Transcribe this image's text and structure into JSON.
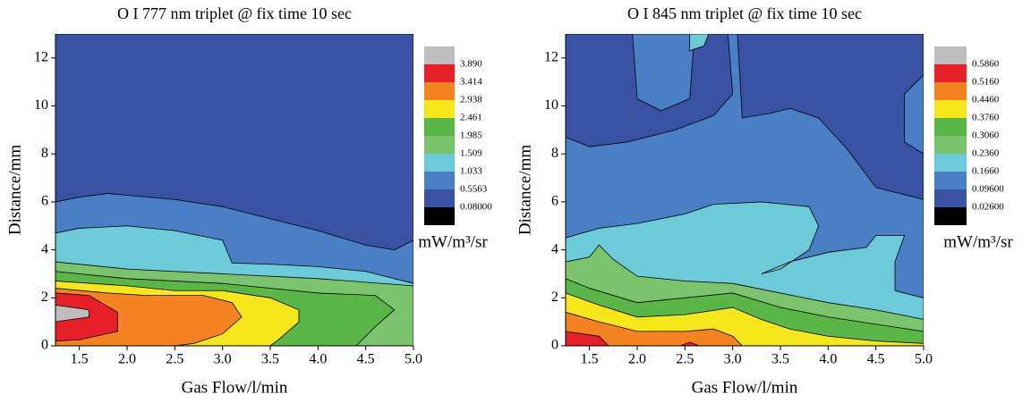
{
  "chart_data": [
    {
      "type": "contour",
      "title": "O I 777 nm triplet @ fix time 10 sec",
      "x_label": "Gas Flow/l/min",
      "y_label": "Distance/mm",
      "xlim": [
        1.25,
        5.0
      ],
      "xticks": [
        1.5,
        {
          "value": 2,
          "label": "2.0"
        },
        2.5,
        {
          "value": 3,
          "label": "3.0"
        },
        3.5,
        {
          "value": 4,
          "label": "4.0"
        },
        4.5,
        {
          "value": 5,
          "label": "5.0"
        }
      ],
      "ylim": [
        0,
        13
      ],
      "yticks": [
        0,
        2,
        4,
        6,
        8,
        10,
        12
      ],
      "colorbar": {
        "label": "mW/m³/sr",
        "levels": [
          {
            "value": 0.08,
            "label": "0.08000"
          },
          0.5563,
          1.033,
          1.509,
          1.985,
          2.461,
          2.938,
          3.414,
          {
            "value": 3.89,
            "label": "3.890"
          }
        ],
        "colors": [
          "#000000",
          "#3a52a3",
          "#4a7fc5",
          "#6dcbd9",
          "#7cc36e",
          "#5ab646",
          "#f5e71a",
          "#f58220",
          "#e8202a",
          "#bebebe"
        ]
      },
      "regions": [
        {
          "color": "#3a52a3",
          "x": [
            1.25,
            5,
            5,
            1.25
          ],
          "y": [
            13,
            13,
            0,
            0
          ]
        },
        {
          "color": "#4a7fc5",
          "x": [
            1.25,
            1.5,
            1.8,
            2.5,
            3.0,
            3.5,
            4.0,
            4.5,
            4.8,
            5,
            5,
            1.25
          ],
          "y": [
            6.0,
            6.2,
            6.35,
            6.1,
            5.8,
            5.3,
            4.8,
            4.2,
            4.0,
            4.4,
            0,
            0
          ]
        },
        {
          "color": "#6dcbd9",
          "x": [
            1.25,
            1.5,
            2.0,
            2.5,
            3.0,
            3.1,
            3.5,
            4.0,
            4.5,
            5,
            5,
            1.25
          ],
          "y": [
            4.7,
            4.9,
            5.0,
            4.8,
            4.4,
            3.45,
            3.4,
            3.3,
            3.1,
            2.6,
            0,
            0
          ]
        },
        {
          "color": "#7cc36e",
          "x": [
            1.25,
            2.0,
            3.0,
            4.0,
            5,
            5,
            1.25
          ],
          "y": [
            3.5,
            3.2,
            3.0,
            2.8,
            2.5,
            0,
            0
          ]
        },
        {
          "color": "#5ab646",
          "x": [
            1.25,
            2.0,
            3.0,
            4.0,
            4.6,
            4.8,
            4.6,
            4.4,
            1.25
          ],
          "y": [
            3.1,
            2.8,
            2.6,
            2.2,
            2.1,
            1.5,
            0.8,
            0,
            0
          ]
        },
        {
          "color": "#f5e71a",
          "x": [
            1.25,
            2.0,
            2.5,
            3.0,
            3.5,
            3.8,
            3.8,
            3.6,
            3.5,
            1.25
          ],
          "y": [
            2.7,
            2.5,
            2.3,
            2.3,
            2.0,
            1.5,
            1.0,
            0.3,
            0,
            0
          ]
        },
        {
          "color": "#f58220",
          "x": [
            1.25,
            1.8,
            2.2,
            2.8,
            3.1,
            3.2,
            3.0,
            2.7,
            2.5,
            1.25
          ],
          "y": [
            2.4,
            2.2,
            2.1,
            2.1,
            1.8,
            1.2,
            0.5,
            0.1,
            0,
            0
          ]
        },
        {
          "color": "#e8202a",
          "x": [
            1.25,
            1.6,
            1.9,
            1.9,
            1.5,
            1.25
          ],
          "y": [
            2.2,
            2.1,
            1.4,
            0.6,
            0.25,
            0.2
          ]
        },
        {
          "color": "#bebebe",
          "x": [
            1.25,
            1.6,
            1.6,
            1.25
          ],
          "y": [
            1.7,
            1.5,
            1.2,
            1.0
          ]
        }
      ]
    },
    {
      "type": "contour",
      "title": "O I 845 nm triplet @ fix time 10 sec",
      "x_label": "Gas Flow/l/min",
      "y_label": "Distance/mm",
      "xlim": [
        1.25,
        5.0
      ],
      "xticks": [
        1.5,
        {
          "value": 2,
          "label": "2.0"
        },
        2.5,
        {
          "value": 3,
          "label": "3.0"
        },
        3.5,
        {
          "value": 4,
          "label": "4.0"
        },
        4.5,
        {
          "value": 5,
          "label": "5.0"
        }
      ],
      "ylim": [
        0,
        13
      ],
      "yticks": [
        0,
        2,
        4,
        6,
        8,
        10,
        12
      ],
      "colorbar": {
        "label": "mW/m³/sr",
        "levels": [
          {
            "value": 0.026,
            "label": "0.02600"
          },
          {
            "value": 0.096,
            "label": "0.09600"
          },
          {
            "value": 0.166,
            "label": "0.1660"
          },
          {
            "value": 0.236,
            "label": "0.2360"
          },
          {
            "value": 0.306,
            "label": "0.3060"
          },
          {
            "value": 0.376,
            "label": "0.3760"
          },
          {
            "value": 0.446,
            "label": "0.4460"
          },
          {
            "value": 0.516,
            "label": "0.5160"
          },
          {
            "value": 0.586,
            "label": "0.5860"
          }
        ],
        "colors": [
          "#000000",
          "#3a52a3",
          "#4a7fc5",
          "#6dcbd9",
          "#7cc36e",
          "#5ab646",
          "#f5e71a",
          "#f58220",
          "#e8202a",
          "#bebebe"
        ]
      },
      "regions": [
        {
          "color": "#4a7fc5",
          "x": [
            1.25,
            5,
            5,
            1.25
          ],
          "y": [
            13,
            13,
            0,
            0
          ]
        },
        {
          "color": "#3a52a3",
          "x": [
            1.25,
            1.95,
            2.0,
            2.25,
            2.55,
            2.6,
            2.95,
            3.0,
            2.8,
            2.4,
            1.9,
            1.5,
            1.25
          ],
          "y": [
            13,
            13,
            10.3,
            9.8,
            10.3,
            13,
            13,
            10.5,
            9.6,
            9.0,
            8.5,
            8.3,
            8.7
          ]
        },
        {
          "color": "#3a52a3",
          "x": [
            3.05,
            5,
            5,
            4.8,
            4.8,
            5,
            5,
            4.5,
            4.2,
            3.9,
            3.6,
            3.4,
            3.1
          ],
          "y": [
            13,
            13,
            11.3,
            10.5,
            8.5,
            8.0,
            6.1,
            6.6,
            8.2,
            9.5,
            9.9,
            9.7,
            9.5
          ]
        },
        {
          "color": "#6dcbd9",
          "x": [
            2.55,
            2.75,
            2.7,
            2.55
          ],
          "y": [
            13,
            13,
            12.5,
            12.3
          ]
        },
        {
          "color": "#6dcbd9",
          "x": [
            1.25,
            1.6,
            2.0,
            2.5,
            2.8,
            3.3,
            3.8,
            3.9,
            3.8,
            3.5,
            3.3,
            3.6,
            4.0,
            4.4,
            4.5,
            4.8,
            4.7,
            4.7,
            5,
            5,
            1.25
          ],
          "y": [
            4.5,
            4.9,
            5.1,
            5.5,
            5.9,
            6.0,
            5.8,
            5.0,
            4.0,
            3.2,
            3.0,
            3.5,
            3.9,
            4.1,
            4.6,
            4.6,
            3.5,
            2.3,
            2.0,
            0,
            0
          ]
        },
        {
          "color": "#7cc36e",
          "x": [
            1.25,
            1.5,
            1.6,
            1.75,
            2.0,
            2.5,
            3.0,
            3.5,
            4.0,
            4.5,
            5,
            5,
            1.25
          ],
          "y": [
            3.5,
            3.7,
            4.2,
            3.6,
            2.9,
            2.7,
            2.6,
            2.2,
            1.8,
            1.5,
            1.1,
            0,
            0
          ]
        },
        {
          "color": "#5ab646",
          "x": [
            1.25,
            1.5,
            2.0,
            2.5,
            3.0,
            3.5,
            4.0,
            4.5,
            5,
            5,
            1.25
          ],
          "y": [
            2.8,
            2.4,
            1.8,
            2.0,
            2.2,
            1.6,
            1.2,
            0.9,
            0.6,
            0,
            0
          ]
        },
        {
          "color": "#f5e71a",
          "x": [
            1.25,
            1.6,
            2.0,
            2.5,
            3.0,
            3.3,
            3.6,
            4.0,
            4.5,
            5,
            5,
            1.25
          ],
          "y": [
            2.2,
            1.7,
            1.2,
            1.3,
            1.6,
            1.1,
            0.7,
            0.4,
            0.2,
            0.1,
            0,
            0
          ]
        },
        {
          "color": "#f58220",
          "x": [
            1.25,
            1.6,
            2.0,
            2.5,
            2.8,
            3.0,
            3.1,
            1.25
          ],
          "y": [
            1.4,
            1.0,
            0.6,
            0.6,
            0.7,
            0.4,
            0,
            0
          ]
        },
        {
          "color": "#e8202a",
          "x": [
            1.25,
            1.6,
            1.7,
            1.25
          ],
          "y": [
            0.6,
            0.4,
            0,
            0
          ]
        },
        {
          "color": "#e8202a",
          "x": [
            2.45,
            2.55,
            2.65
          ],
          "y": [
            0,
            0.15,
            0
          ]
        }
      ]
    }
  ]
}
